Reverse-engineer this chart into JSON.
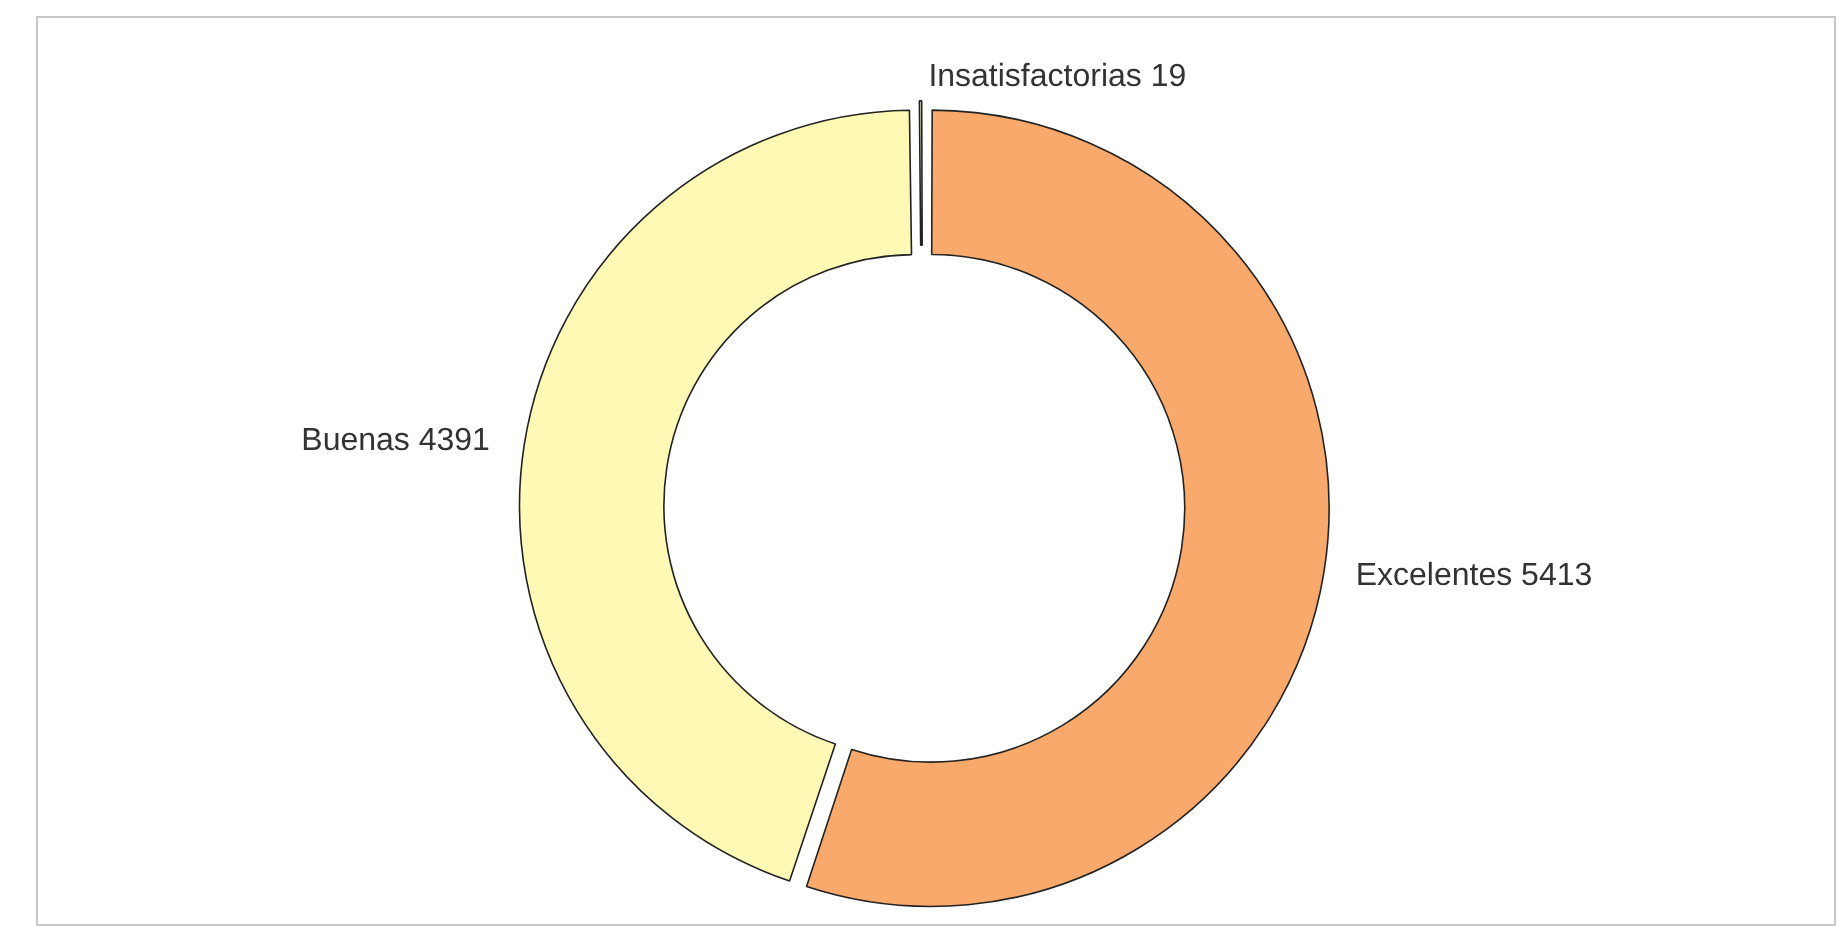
{
  "chart_data": {
    "type": "donut",
    "categories": [
      "Excelentes",
      "Buenas",
      "Insatisfactorias"
    ],
    "values": [
      5413,
      4391,
      19
    ],
    "colors": [
      "#f9a96b",
      "#fef9b4",
      "#fdf6c8"
    ],
    "data_labels": true,
    "legend": false
  }
}
